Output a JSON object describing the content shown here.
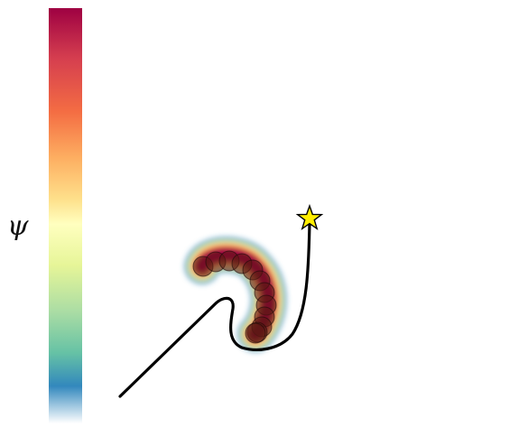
{
  "colorbar": {
    "label": "ψ",
    "colormap": "Spectral_r",
    "stops": [
      "#9e0142",
      "#d53e4f",
      "#f46d43",
      "#fdae61",
      "#fee08b",
      "#ffffbf",
      "#e6f598",
      "#abdda4",
      "#66c2a5",
      "#3288bd",
      "#ffffff"
    ]
  },
  "trajectory": {
    "color": "#000000"
  },
  "goal": {
    "icon": "star-icon",
    "color": "#ffee00"
  },
  "agent_path": {
    "dot_color": "#5a1a12",
    "count": 12
  }
}
